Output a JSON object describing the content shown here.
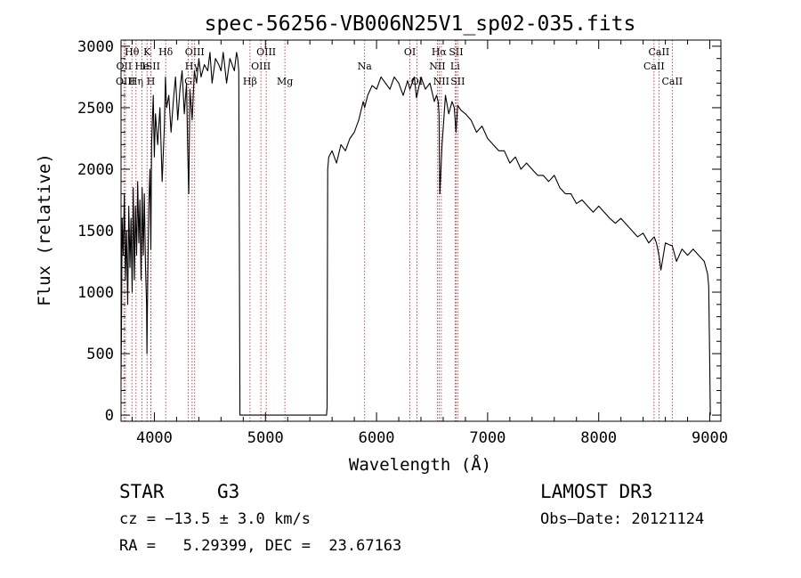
{
  "chart_data": {
    "type": "line",
    "title": "spec-56256-VB006N25V1_sp02-035.fits",
    "xlabel": "Wavelength (Å)",
    "ylabel": "Flux (relative)",
    "xlim": [
      3700,
      9100
    ],
    "ylim": [
      -50,
      3050
    ],
    "x_ticks": [
      4000,
      5000,
      6000,
      7000,
      8000,
      9000
    ],
    "y_ticks": [
      0,
      500,
      1000,
      1500,
      2000,
      2500,
      3000
    ],
    "grid": false,
    "series": [
      {
        "name": "flux",
        "x": [
          3700,
          3705,
          3710,
          3720,
          3730,
          3740,
          3750,
          3760,
          3770,
          3780,
          3790,
          3800,
          3810,
          3820,
          3830,
          3840,
          3850,
          3860,
          3870,
          3880,
          3890,
          3900,
          3910,
          3920,
          3930,
          3933,
          3940,
          3950,
          3960,
          3968,
          3975,
          3990,
          4000,
          4010,
          4030,
          4050,
          4070,
          4090,
          4100,
          4110,
          4130,
          4150,
          4170,
          4190,
          4210,
          4230,
          4250,
          4270,
          4290,
          4300,
          4310,
          4320,
          4340,
          4360,
          4380,
          4400,
          4420,
          4450,
          4480,
          4500,
          4520,
          4550,
          4580,
          4600,
          4620,
          4650,
          4680,
          4700,
          4720,
          4740,
          4750,
          4760,
          4770,
          4780,
          4790,
          4800,
          5540,
          5550,
          5555,
          5560,
          5570,
          5600,
          5640,
          5680,
          5720,
          5760,
          5800,
          5840,
          5880,
          5893,
          5920,
          5960,
          6000,
          6040,
          6080,
          6120,
          6160,
          6200,
          6240,
          6280,
          6300,
          6320,
          6340,
          6360,
          6400,
          6440,
          6480,
          6520,
          6540,
          6555,
          6563,
          6570,
          6590,
          6620,
          6650,
          6680,
          6700,
          6716,
          6730,
          6760,
          6800,
          6850,
          6900,
          6950,
          7000,
          7050,
          7100,
          7150,
          7200,
          7250,
          7300,
          7350,
          7400,
          7450,
          7500,
          7550,
          7600,
          7650,
          7700,
          7750,
          7800,
          7850,
          7900,
          7950,
          8000,
          8050,
          8100,
          8150,
          8200,
          8250,
          8300,
          8350,
          8400,
          8450,
          8500,
          8520,
          8542,
          8560,
          8600,
          8650,
          8662,
          8700,
          8750,
          8800,
          8850,
          8900,
          8950,
          8980,
          8990,
          9000,
          9005
        ],
        "y": [
          300,
          800,
          1600,
          1300,
          1800,
          1100,
          1500,
          900,
          1700,
          1200,
          1600,
          1000,
          1850,
          1100,
          1700,
          1300,
          1900,
          1400,
          1750,
          1100,
          1850,
          1300,
          1800,
          1200,
          900,
          500,
          1100,
          1700,
          2000,
          1350,
          2200,
          2600,
          2100,
          2450,
          2200,
          2500,
          1900,
          2350,
          2750,
          2500,
          2600,
          2300,
          2550,
          2750,
          2400,
          2650,
          2800,
          2450,
          2700,
          2150,
          1800,
          2650,
          2400,
          2800,
          2700,
          2900,
          2750,
          2850,
          2800,
          2950,
          2700,
          2900,
          2850,
          2800,
          2950,
          2700,
          2900,
          2850,
          2800,
          2950,
          2900,
          2800,
          0,
          0,
          0,
          0,
          0,
          0,
          60,
          2000,
          2100,
          2150,
          2050,
          2200,
          2150,
          2250,
          2300,
          2400,
          2550,
          2500,
          2600,
          2680,
          2650,
          2750,
          2700,
          2650,
          2750,
          2700,
          2600,
          2720,
          2650,
          2700,
          2750,
          2580,
          2750,
          2650,
          2700,
          2550,
          2600,
          2550,
          2450,
          1800,
          2200,
          2600,
          2450,
          2550,
          2500,
          2300,
          2520,
          2480,
          2450,
          2400,
          2300,
          2350,
          2250,
          2200,
          2150,
          2150,
          2050,
          2100,
          2000,
          2050,
          2000,
          1950,
          1950,
          1900,
          1950,
          1850,
          1800,
          1800,
          1720,
          1750,
          1700,
          1650,
          1700,
          1650,
          1600,
          1560,
          1600,
          1550,
          1500,
          1450,
          1480,
          1400,
          1450,
          1400,
          1300,
          1180,
          1400,
          1380,
          1380,
          1250,
          1350,
          1300,
          1350,
          1300,
          1250,
          1150,
          1050,
          400,
          0
        ]
      }
    ],
    "lines": [
      {
        "label": "Hθ",
        "wl": 3798,
        "row": 1
      },
      {
        "label": "OII",
        "wl": 3727,
        "row": 2
      },
      {
        "label": "OIII",
        "wl": 3740,
        "row": 3
      },
      {
        "label": "Hη",
        "wl": 3835,
        "row": 3
      },
      {
        "label": "K",
        "wl": 3934,
        "row": 1
      },
      {
        "label": "He",
        "wl": 3889,
        "row": 2
      },
      {
        "label": "ISII",
        "wl": 3970,
        "row": 2
      },
      {
        "label": "H",
        "wl": 3969,
        "row": 3
      },
      {
        "label": "Hδ",
        "wl": 4102,
        "row": 1
      },
      {
        "label": "OIII",
        "wl": 4363,
        "row": 1
      },
      {
        "label": "Hγ",
        "wl": 4340,
        "row": 2
      },
      {
        "label": "G",
        "wl": 4305,
        "row": 3
      },
      {
        "label": "Hβ",
        "wl": 4861,
        "row": 3
      },
      {
        "label": "OIII",
        "wl": 5007,
        "row": 1
      },
      {
        "label": "OIII",
        "wl": 4959,
        "row": 2
      },
      {
        "label": "Mg",
        "wl": 5175,
        "row": 3
      },
      {
        "label": "Na",
        "wl": 5893,
        "row": 2
      },
      {
        "label": "OI",
        "wl": 6300,
        "row": 1
      },
      {
        "label": "OI",
        "wl": 6363,
        "row": 3
      },
      {
        "label": "Hα",
        "wl": 6563,
        "row": 1
      },
      {
        "label": "SII",
        "wl": 6716,
        "row": 1
      },
      {
        "label": "NII",
        "wl": 6548,
        "row": 2
      },
      {
        "label": "Li",
        "wl": 6707,
        "row": 2
      },
      {
        "label": "NII",
        "wl": 6583,
        "row": 3
      },
      {
        "label": "SII",
        "wl": 6731,
        "row": 3
      },
      {
        "label": "CaII",
        "wl": 8542,
        "row": 1
      },
      {
        "label": "CaII",
        "wl": 8498,
        "row": 2
      },
      {
        "label": "CaII",
        "wl": 8662,
        "row": 3
      }
    ]
  },
  "info": {
    "object_class": "STAR",
    "subclass": "G3",
    "survey": "LAMOST DR3",
    "cz": "cz = −13.5 ± 3.0 km/s",
    "obs_date": "Obs–Date: 20121124",
    "radec": "RA =   5.29399, DEC =  23.67163"
  }
}
